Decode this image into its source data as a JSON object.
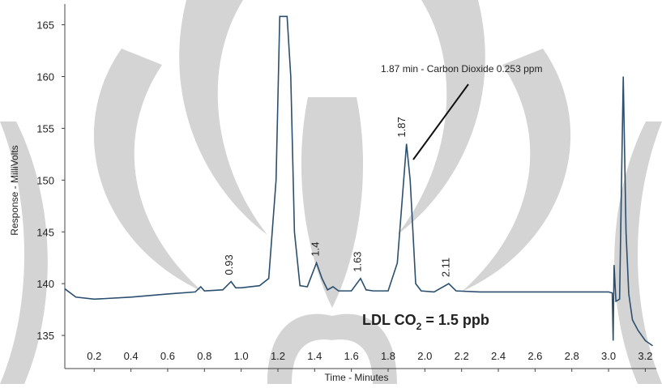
{
  "chart_data": {
    "type": "line",
    "y_label": "Response  - MilliVolts",
    "x_label": "Time  - Minutes",
    "color": "#2b4f6e",
    "x": [
      0.04,
      0.1,
      0.2,
      0.4,
      0.6,
      0.75,
      0.78,
      0.8,
      0.9,
      0.945,
      0.97,
      1.0,
      1.1,
      1.15,
      1.19,
      1.21,
      1.25,
      1.27,
      1.29,
      1.32,
      1.36,
      1.41,
      1.44,
      1.47,
      1.5,
      1.53,
      1.6,
      1.65,
      1.68,
      1.72,
      1.8,
      1.85,
      1.9,
      1.92,
      1.95,
      1.98,
      2.05,
      2.13,
      2.17,
      2.3,
      2.6,
      3.0,
      3.02,
      3.025,
      3.03,
      3.04,
      3.06,
      3.08,
      3.095,
      3.11,
      3.13,
      3.16,
      3.2,
      3.24
    ],
    "values": [
      139.5,
      138.7,
      138.5,
      138.7,
      139.0,
      139.2,
      139.7,
      139.3,
      139.4,
      140.2,
      139.6,
      139.6,
      139.8,
      140.5,
      150,
      165.8,
      165.8,
      160,
      145,
      139.8,
      139.7,
      142,
      140.5,
      139.4,
      139.7,
      139.3,
      139.3,
      140.5,
      139.4,
      139.3,
      139.3,
      142,
      153.5,
      150,
      140,
      139.3,
      139.2,
      140.0,
      139.3,
      139.2,
      139.2,
      139.2,
      139.1,
      134.5,
      141.8,
      138.3,
      138.5,
      160.0,
      145,
      139,
      136.5,
      135.5,
      134.5,
      134
    ],
    "xlim": [
      0.04,
      3.26
    ],
    "ylim": [
      131.8,
      167
    ],
    "xticks": [
      0.2,
      0.4,
      0.6,
      0.8,
      {
        "value": 1,
        "label": "1.0"
      },
      1.2,
      1.4,
      1.6,
      1.8,
      {
        "value": 2,
        "label": "2.0"
      },
      2.2,
      2.4,
      2.6,
      2.8,
      {
        "value": 3,
        "label": "3.0"
      },
      3.2
    ],
    "yticks": [
      135,
      140,
      145,
      150,
      155,
      160,
      165
    ],
    "peaks": [
      {
        "time": 0.93,
        "response": 140.2
      },
      {
        "time": 1.4,
        "response": 142
      },
      {
        "time": 1.63,
        "response": 140.5
      },
      {
        "time": 1.87,
        "response": 153.5
      },
      {
        "time": 2.11,
        "response": 140.0
      }
    ],
    "callout": "1.87 min - Carbon Dioxide  0.253 ppm",
    "ldl": {
      "prefix": "LDL CO",
      "subscript": "2",
      "suffix": " = 1.5 ppb"
    }
  }
}
